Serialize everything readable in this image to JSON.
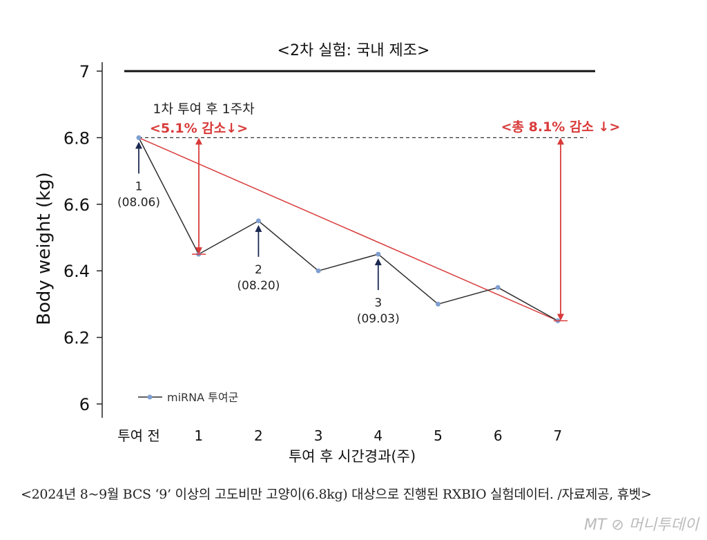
{
  "chart_data": {
    "type": "line",
    "title": "<2차 실험: 국내 제조>",
    "xlabel": "투여 후 시간경과(주)",
    "ylabel": "Body weight (kg)",
    "categories": [
      "투여 전",
      "1",
      "2",
      "3",
      "4",
      "5",
      "6",
      "7"
    ],
    "series": [
      {
        "name": "miRNA 투여군",
        "values": [
          6.8,
          6.45,
          6.55,
          6.4,
          6.45,
          6.3,
          6.35,
          6.25
        ],
        "color": "#2d2d2d",
        "marker_color": "#7f9fd0"
      }
    ],
    "ylim": [
      6,
      7
    ],
    "yticks": [
      "6",
      "6.2",
      "6.4",
      "6.6",
      "6.8",
      "7"
    ],
    "legend": "bottom-left",
    "trend_line_color": "#d93a3a",
    "reference_line": 6.8,
    "annotations": {
      "week1_title": "1차 투여 후 1주차",
      "week1_drop": "<5.1% 감소↓>",
      "total_drop": "<총 8.1% 감소 ↓>",
      "doses": [
        {
          "num": "1",
          "date": "(08.06)",
          "at": "투여 전"
        },
        {
          "num": "2",
          "date": "(08.20)",
          "at": "2"
        },
        {
          "num": "3",
          "date": "(09.03)",
          "at": "4"
        }
      ]
    }
  },
  "caption": "<2024년 8~9월 BCS ‘9’ 이상의 고도비만 고양이(6.8kg) 대상으로 진행된 RXBIO 실험데이터. /자료제공, 휴벳>",
  "watermark": "MT 머니투데이"
}
